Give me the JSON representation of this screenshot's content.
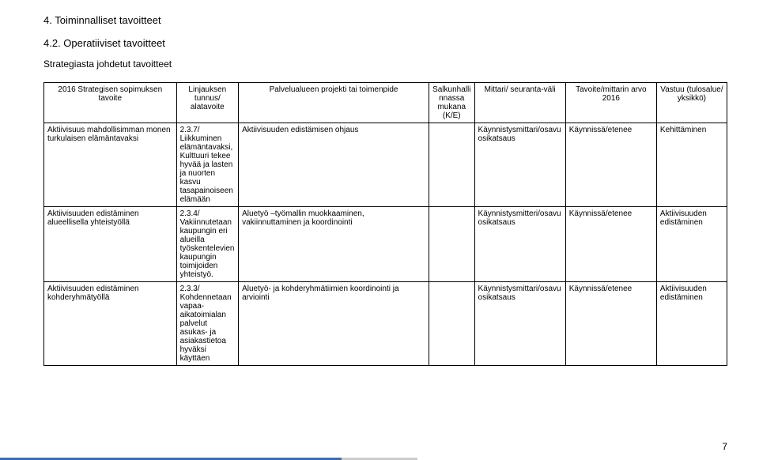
{
  "heading1": "4.  Toiminnalliset tavoitteet",
  "heading2": "4.2.  Operatiiviset tavoitteet",
  "subheading": "Strategiasta johdetut tavoitteet",
  "columns": [
    "2016 Strategisen sopimuksen tavoite",
    "Linjauksen tunnus/ alatavoite",
    "Palvelualueen projekti tai toimenpide",
    "Salkunhallinnassa mukana (K/E)",
    "Mittari/ seuranta-väli",
    "Tavoite/mittarin arvo 2016",
    "Vastuu (tulosalue/ yksikkö)"
  ],
  "rows": [
    {
      "c1": "Aktiivisuus mahdollisimman monen turkulaisen elämäntavaksi",
      "c2": "2.3.7/ Liikkuminen elämäntavaksi, Kulttuuri tekee hyvää ja lasten ja nuorten kasvu tasapainoiseen elämään",
      "c3": "Aktiivisuuden edistämisen ohjaus",
      "c4": "",
      "c5": "Käynnistysmittari/osavuosikatsaus",
      "c6": "Käynnissä/etenee",
      "c7": "Kehittäminen"
    },
    {
      "c1": "Aktiivisuuden edistäminen alueellisella yhteistyöllä",
      "c2": "2.3.4/ Vakiinnutetaan kaupungin eri alueilla työskentelevien kaupungin toimijoiden yhteistyö.",
      "c3": "Aluetyö –työmallin muokkaaminen, vakiinnuttaminen ja koordinointi",
      "c4": "",
      "c5": "Käynnistysmitteri/osavuosikatsaus",
      "c6": "Käynnissä/etenee",
      "c7": "Aktiivisuuden edistäminen"
    },
    {
      "c1": "Aktiivisuuden edistäminen kohderyhmätyöllä",
      "c2": "2.3.3/ Kohdennetaan vapaa-aikatoimialan palvelut asukas- ja asiakastietoa hyväksi käyttäen",
      "c3": "Aluetyö- ja kohderyhmätiimien koordinointi ja arviointi",
      "c4": "",
      "c5": "Käynnistysmittari/osavuosikatsaus",
      "c6": "Käynnissä/etenee",
      "c7": "Aktiivisuuden edistäminen"
    }
  ],
  "pageNumber": "7"
}
